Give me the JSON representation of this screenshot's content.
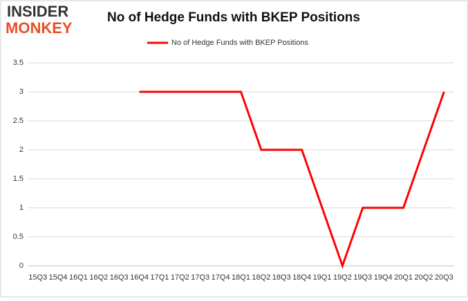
{
  "logo": {
    "line1": "INSIDER",
    "line2": "MONKEY"
  },
  "chart_data": {
    "type": "line",
    "title": "No of Hedge Funds with BKEP Positions",
    "categories": [
      "15Q3",
      "15Q4",
      "16Q1",
      "16Q2",
      "16Q3",
      "16Q4",
      "17Q1",
      "17Q2",
      "17Q3",
      "17Q4",
      "18Q1",
      "18Q2",
      "18Q3",
      "18Q4",
      "19Q1",
      "19Q2",
      "19Q3",
      "19Q4",
      "20Q1",
      "20Q2",
      "20Q3"
    ],
    "series": [
      {
        "name": "No of Hedge Funds with BKEP Positions",
        "color": "#ff0000",
        "values": [
          null,
          null,
          null,
          null,
          null,
          3,
          3,
          3,
          3,
          3,
          3,
          2,
          2,
          2,
          1,
          0,
          1,
          1,
          1,
          2,
          3
        ]
      }
    ],
    "ylim": [
      0,
      3.5
    ],
    "yticks": [
      0,
      0.5,
      1,
      1.5,
      2,
      2.5,
      3,
      3.5
    ],
    "grid": true,
    "legend": "top"
  }
}
